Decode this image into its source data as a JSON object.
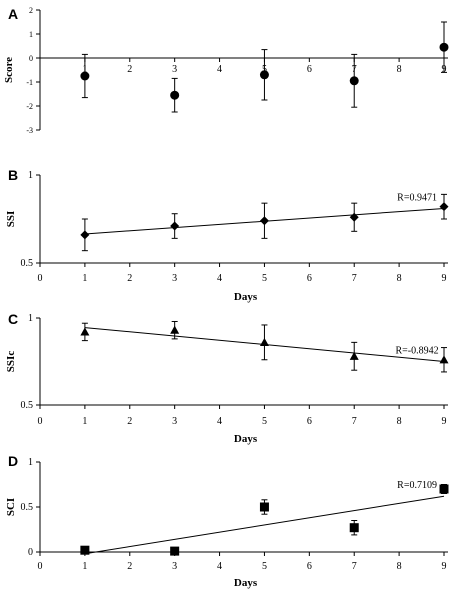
{
  "chart_data": [
    {
      "panel": "A",
      "type": "scatter",
      "marker": "circle",
      "ylabel": "Score",
      "xlabel": "",
      "xlim": [
        0,
        9
      ],
      "ylim": [
        -3,
        2
      ],
      "xticks": [
        1,
        2,
        3,
        4,
        5,
        6,
        7,
        8,
        9
      ],
      "xtick_labels": [
        "1",
        "2",
        "3",
        "4",
        "5",
        "6",
        "7",
        "8",
        "9"
      ],
      "yticks": [
        2,
        1,
        0,
        -1,
        -2,
        -3
      ],
      "ytick_labels": [
        "2",
        "1",
        "0",
        "-1",
        "-2",
        "-3"
      ],
      "x_axis_at_y": 0,
      "points": [
        {
          "x": 1,
          "y": -0.75,
          "err": 0.9
        },
        {
          "x": 3,
          "y": -1.55,
          "err": 0.7
        },
        {
          "x": 5,
          "y": -0.7,
          "err": 1.05
        },
        {
          "x": 7,
          "y": -0.95,
          "err": 1.1
        },
        {
          "x": 9,
          "y": 0.45,
          "err": 1.05
        }
      ]
    },
    {
      "panel": "B",
      "type": "scatter",
      "marker": "diamond",
      "ylabel": "SSI",
      "xlabel": "Days",
      "xlim": [
        0,
        9
      ],
      "ylim": [
        0.5,
        1
      ],
      "xticks": [
        0,
        1,
        2,
        3,
        4,
        5,
        6,
        7,
        8,
        9
      ],
      "xtick_labels": [
        "0",
        "1",
        "2",
        "3",
        "4",
        "5",
        "6",
        "7",
        "8",
        "9"
      ],
      "yticks": [
        0.5,
        1
      ],
      "ytick_labels": [
        "0.5",
        "1"
      ],
      "points": [
        {
          "x": 1,
          "y": 0.66,
          "err": 0.09
        },
        {
          "x": 3,
          "y": 0.71,
          "err": 0.07
        },
        {
          "x": 5,
          "y": 0.74,
          "err": 0.1
        },
        {
          "x": 7,
          "y": 0.76,
          "err": 0.08
        },
        {
          "x": 9,
          "y": 0.82,
          "err": 0.07
        }
      ],
      "trendline": {
        "from": [
          1,
          0.665
        ],
        "to": [
          9,
          0.81
        ]
      },
      "r_label": "R=0.9471"
    },
    {
      "panel": "C",
      "type": "scatter",
      "marker": "triangle",
      "ylabel": "SSIc",
      "xlabel": "Days",
      "xlim": [
        0,
        9
      ],
      "ylim": [
        0.5,
        1
      ],
      "xticks": [
        0,
        1,
        2,
        3,
        4,
        5,
        6,
        7,
        8,
        9
      ],
      "xtick_labels": [
        "0",
        "1",
        "2",
        "3",
        "4",
        "5",
        "6",
        "7",
        "8",
        "9"
      ],
      "yticks": [
        0.5,
        1
      ],
      "ytick_labels": [
        "0.5",
        "1"
      ],
      "points": [
        {
          "x": 1,
          "y": 0.92,
          "err": 0.05
        },
        {
          "x": 3,
          "y": 0.93,
          "err": 0.05
        },
        {
          "x": 5,
          "y": 0.86,
          "err": 0.1
        },
        {
          "x": 7,
          "y": 0.78,
          "err": 0.08
        },
        {
          "x": 9,
          "y": 0.76,
          "err": 0.07
        }
      ],
      "trendline": {
        "from": [
          1,
          0.945
        ],
        "to": [
          9,
          0.75
        ]
      },
      "r_label": "R=-0.8942"
    },
    {
      "panel": "D",
      "type": "scatter",
      "marker": "square",
      "ylabel": "SCI",
      "xlabel": "Days",
      "xlim": [
        0,
        9
      ],
      "ylim": [
        0,
        1
      ],
      "xticks": [
        0,
        1,
        2,
        3,
        4,
        5,
        6,
        7,
        8,
        9
      ],
      "xtick_labels": [
        "0",
        "1",
        "2",
        "3",
        "4",
        "5",
        "6",
        "7",
        "8",
        "9"
      ],
      "yticks": [
        0,
        0.5,
        1
      ],
      "ytick_labels": [
        "0",
        "0.5",
        "1"
      ],
      "points": [
        {
          "x": 1,
          "y": 0.02,
          "err": 0.04
        },
        {
          "x": 3,
          "y": 0.01,
          "err": 0.02
        },
        {
          "x": 5,
          "y": 0.5,
          "err": 0.08
        },
        {
          "x": 7,
          "y": 0.27,
          "err": 0.08
        },
        {
          "x": 9,
          "y": 0.7,
          "err": 0.05
        }
      ],
      "trendline": {
        "from": [
          1,
          -0.02
        ],
        "to": [
          9,
          0.62
        ]
      },
      "r_label": "R=0.7109"
    }
  ]
}
